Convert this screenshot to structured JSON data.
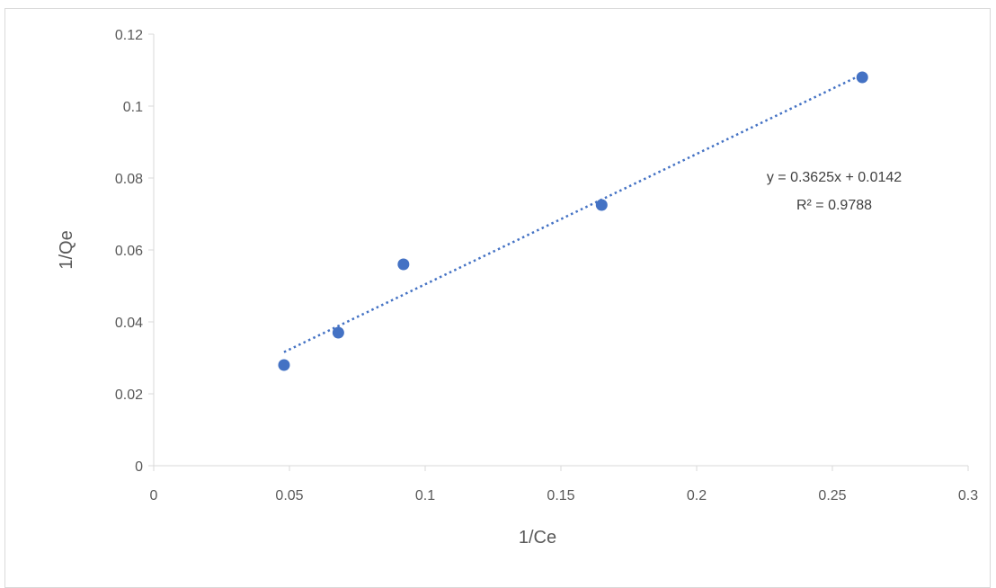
{
  "chart_data": {
    "type": "scatter",
    "title": "",
    "xlabel": "1/Ce",
    "ylabel": "1/Qe",
    "xlim": [
      0,
      0.3
    ],
    "ylim": [
      0,
      0.12
    ],
    "x_ticks": [
      0,
      0.05,
      0.1,
      0.15,
      0.2,
      0.25,
      0.3
    ],
    "x_tick_labels": [
      "0",
      "0.05",
      "0.1",
      "0.15",
      "0.2",
      "0.25",
      "0.3"
    ],
    "y_ticks": [
      0,
      0.02,
      0.04,
      0.06,
      0.08,
      0.1,
      0.12
    ],
    "y_tick_labels": [
      "0",
      "0.02",
      "0.04",
      "0.06",
      "0.08",
      "0.1",
      "0.12"
    ],
    "grid": false,
    "series": [
      {
        "x": [
          0.048,
          0.068,
          0.092,
          0.165,
          0.261
        ],
        "y": [
          0.028,
          0.037,
          0.056,
          0.0725,
          0.108
        ],
        "color": "#4472C4"
      }
    ],
    "trendline": {
      "type": "linear",
      "style": "dotted",
      "color": "#4472C4",
      "slope": 0.3625,
      "intercept": 0.0142,
      "x_range": [
        0.048,
        0.261
      ],
      "equation": "y = 0.3625x + 0.0142",
      "r_squared": "R² = 0.9788"
    }
  }
}
